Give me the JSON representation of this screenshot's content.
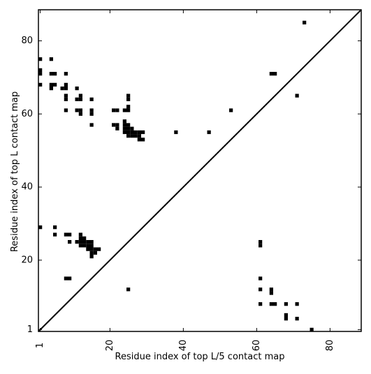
{
  "chart_data": {
    "type": "heatmap",
    "title": "",
    "xlabel": "Residue index of top L/5 contact map",
    "ylabel": "Residue index of top L contact map",
    "xlim": [
      0.5,
      88.5
    ],
    "ylim": [
      0.5,
      88.5
    ],
    "xticks": [
      {
        "value": 1,
        "label": "1"
      },
      {
        "value": 20,
        "label": "20"
      },
      {
        "value": 40,
        "label": "40"
      },
      {
        "value": 60,
        "label": "60"
      },
      {
        "value": 80,
        "label": "80"
      }
    ],
    "yticks": [
      {
        "value": 1,
        "label": "1"
      },
      {
        "value": 20,
        "label": "20"
      },
      {
        "value": 40,
        "label": "40"
      },
      {
        "value": 60,
        "label": "60"
      },
      {
        "value": 80,
        "label": "80"
      }
    ],
    "x_tick_rotation": -90,
    "diagonal": true,
    "grid": false,
    "cell_color": "#000000",
    "upper_triangle_contacts": [
      [
        1,
        75
      ],
      [
        1,
        72
      ],
      [
        1,
        71
      ],
      [
        1,
        68
      ],
      [
        4,
        75
      ],
      [
        4,
        71
      ],
      [
        4,
        68
      ],
      [
        4,
        67
      ],
      [
        5,
        71
      ],
      [
        5,
        68
      ],
      [
        7,
        67
      ],
      [
        8,
        71
      ],
      [
        8,
        68
      ],
      [
        8,
        67
      ],
      [
        8,
        65
      ],
      [
        8,
        64
      ],
      [
        8,
        61
      ],
      [
        11,
        67
      ],
      [
        11,
        64
      ],
      [
        11,
        61
      ],
      [
        12,
        65
      ],
      [
        12,
        64
      ],
      [
        12,
        61
      ],
      [
        12,
        60
      ],
      [
        15,
        64
      ],
      [
        15,
        61
      ],
      [
        15,
        60
      ],
      [
        15,
        57
      ],
      [
        21,
        61
      ],
      [
        21,
        57
      ],
      [
        22,
        61
      ],
      [
        22,
        57
      ],
      [
        22,
        56
      ],
      [
        24,
        61
      ],
      [
        24,
        58
      ],
      [
        24,
        57
      ],
      [
        24,
        56
      ],
      [
        24,
        55
      ],
      [
        25,
        65
      ],
      [
        25,
        64
      ],
      [
        25,
        62
      ],
      [
        25,
        61
      ],
      [
        25,
        57
      ],
      [
        25,
        56
      ],
      [
        25,
        55
      ],
      [
        25,
        54
      ],
      [
        26,
        56
      ],
      [
        26,
        55
      ],
      [
        26,
        54
      ],
      [
        27,
        55
      ],
      [
        27,
        54
      ],
      [
        28,
        55
      ],
      [
        28,
        54
      ],
      [
        28,
        53
      ],
      [
        29,
        55
      ],
      [
        29,
        53
      ],
      [
        38,
        55
      ],
      [
        47,
        55
      ],
      [
        53,
        61
      ],
      [
        64,
        71
      ],
      [
        65,
        71
      ],
      [
        71,
        65
      ],
      [
        73,
        85
      ]
    ],
    "lower_triangle_contacts": [
      [
        1,
        29
      ],
      [
        5,
        29
      ],
      [
        5,
        27
      ],
      [
        8,
        27
      ],
      [
        8,
        15
      ],
      [
        9,
        27
      ],
      [
        9,
        25
      ],
      [
        9,
        15
      ],
      [
        11,
        25
      ],
      [
        12,
        27
      ],
      [
        12,
        26
      ],
      [
        12,
        25
      ],
      [
        12,
        24
      ],
      [
        13,
        26
      ],
      [
        13,
        25
      ],
      [
        13,
        24
      ],
      [
        14,
        25
      ],
      [
        14,
        24
      ],
      [
        14,
        23
      ],
      [
        15,
        25
      ],
      [
        15,
        24
      ],
      [
        15,
        23
      ],
      [
        15,
        22
      ],
      [
        15,
        21
      ],
      [
        16,
        23
      ],
      [
        16,
        22
      ],
      [
        17,
        23
      ],
      [
        25,
        12
      ],
      [
        61,
        25
      ],
      [
        61,
        24
      ],
      [
        61,
        15
      ],
      [
        61,
        12
      ],
      [
        61,
        8
      ],
      [
        64,
        12
      ],
      [
        64,
        11
      ],
      [
        64,
        8
      ],
      [
        65,
        8
      ],
      [
        68,
        8
      ],
      [
        68,
        5
      ],
      [
        68,
        4
      ],
      [
        71,
        8
      ],
      [
        71,
        4
      ],
      [
        75,
        1
      ]
    ]
  }
}
